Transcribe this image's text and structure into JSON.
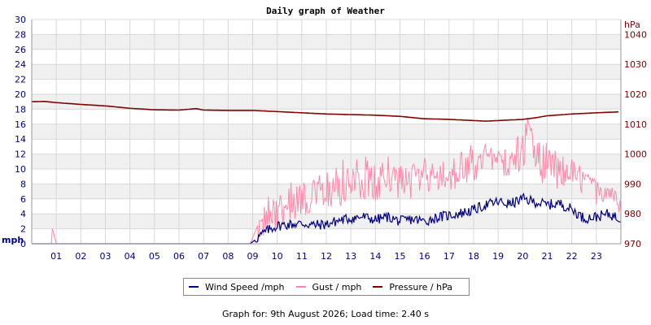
{
  "chart_data": {
    "type": "line",
    "title": "Daily graph of Weather",
    "left_axis": {
      "unit_label": "mph",
      "range": [
        0,
        30
      ],
      "ticks": [
        "0",
        "2",
        "4",
        "6",
        "8",
        "10",
        "12",
        "14",
        "16",
        "18",
        "20",
        "22",
        "24",
        "26",
        "28",
        "30"
      ]
    },
    "right_axis": {
      "unit_label": "hPa",
      "range": [
        970,
        1045
      ],
      "ticks": [
        "970",
        "980",
        "990",
        "1000",
        "1010",
        "1020",
        "1030",
        "1040"
      ]
    },
    "x_axis": {
      "range_hours": [
        0,
        24
      ],
      "ticks": [
        "01",
        "02",
        "03",
        "04",
        "05",
        "06",
        "07",
        "08",
        "09",
        "10",
        "11",
        "12",
        "13",
        "14",
        "15",
        "16",
        "17",
        "18",
        "19",
        "20",
        "21",
        "22",
        "23"
      ]
    },
    "grid": true,
    "legend_position": "bottom",
    "series": [
      {
        "name": "Wind Speed /mph",
        "color": "#000080",
        "axis": "left",
        "x": [
          0,
          0.8,
          0.9,
          1,
          2,
          3,
          4,
          5,
          6,
          7,
          8,
          8.9,
          9.2,
          9.6,
          10,
          10.5,
          11,
          11.5,
          12,
          12.5,
          13,
          13.5,
          14,
          14.5,
          15,
          15.5,
          16,
          16.5,
          17,
          17.5,
          18,
          18.5,
          19,
          19.5,
          20,
          20.5,
          21,
          21.5,
          22,
          22.5,
          23,
          23.5,
          23.9
        ],
        "y": [
          0,
          0,
          0,
          0,
          0,
          0,
          0,
          0,
          0,
          0,
          0,
          0,
          0.8,
          1.8,
          2.4,
          2.6,
          2.7,
          2.5,
          2.6,
          3.1,
          3.4,
          3.6,
          3.2,
          3.6,
          3.0,
          3.3,
          3.0,
          3.5,
          3.8,
          4.1,
          4.5,
          5.2,
          5.6,
          5.3,
          6.0,
          5.6,
          5.2,
          5.4,
          4.6,
          3.4,
          3.6,
          4.0,
          3.4
        ]
      },
      {
        "name": "Gust / mph",
        "color": "#ff88aa",
        "axis": "left",
        "x": [
          0,
          0.8,
          0.85,
          0.9,
          1,
          2,
          3,
          4,
          5,
          6,
          7,
          8,
          8.9,
          9.2,
          9.6,
          10,
          10.5,
          11,
          11.5,
          12,
          12.5,
          13,
          13.5,
          14,
          14.5,
          15,
          15.5,
          16,
          16.5,
          17,
          17.5,
          18,
          18.5,
          19,
          19.5,
          20,
          20.3,
          20.5,
          21,
          21.5,
          22,
          22.5,
          23,
          23.5,
          23.9
        ],
        "y": [
          0,
          0,
          2.4,
          1.2,
          0,
          0,
          0,
          0,
          0,
          0,
          0,
          0,
          0,
          2.4,
          3.5,
          4.5,
          5.5,
          6.0,
          6.5,
          7.0,
          7.5,
          8.0,
          8.5,
          8.0,
          9.0,
          8.5,
          8.5,
          9.0,
          9.5,
          9.5,
          10.0,
          10.5,
          11.5,
          12.0,
          11.0,
          12.0,
          16.5,
          11.5,
          10.0,
          9.5,
          10.0,
          9.0,
          7.5,
          8.0,
          6.5
        ],
        "y_peaks": [
          0,
          0,
          2.4,
          1.2,
          0,
          0,
          0,
          0,
          0,
          0,
          0,
          0,
          0,
          2.4,
          6.5,
          9.0,
          9.5,
          8.5,
          8.5,
          10.5,
          11.5,
          11.0,
          12.0,
          10.5,
          12.0,
          10.5,
          11.0,
          11.5,
          12.0,
          11.5,
          12.5,
          13.5,
          13.5,
          12.5,
          13.0,
          16.0,
          17.2,
          14.5,
          13.5,
          12.0,
          11.5,
          10.5,
          8.5,
          8.0,
          6.5
        ]
      },
      {
        "name": "Pressure / hPa",
        "color": "#800000",
        "axis": "right",
        "x": [
          0,
          0.5,
          1,
          2,
          3,
          4,
          5,
          6,
          6.7,
          7,
          8,
          9,
          10,
          11,
          12,
          13,
          14,
          15,
          16,
          17,
          18,
          18.5,
          19,
          20,
          20.5,
          21,
          22,
          23,
          23.9
        ],
        "y": [
          1017.5,
          1017.6,
          1017.2,
          1016.6,
          1016.1,
          1015.3,
          1014.8,
          1014.7,
          1015.2,
          1014.7,
          1014.6,
          1014.6,
          1014.2,
          1013.8,
          1013.4,
          1013.2,
          1013.0,
          1012.6,
          1011.8,
          1011.6,
          1011.2,
          1011.0,
          1011.2,
          1011.6,
          1012.1,
          1012.8,
          1013.4,
          1013.8,
          1014.1
        ]
      }
    ]
  },
  "footer_text": "Graph for: 9th August 2026; Load time: 2.40 s"
}
